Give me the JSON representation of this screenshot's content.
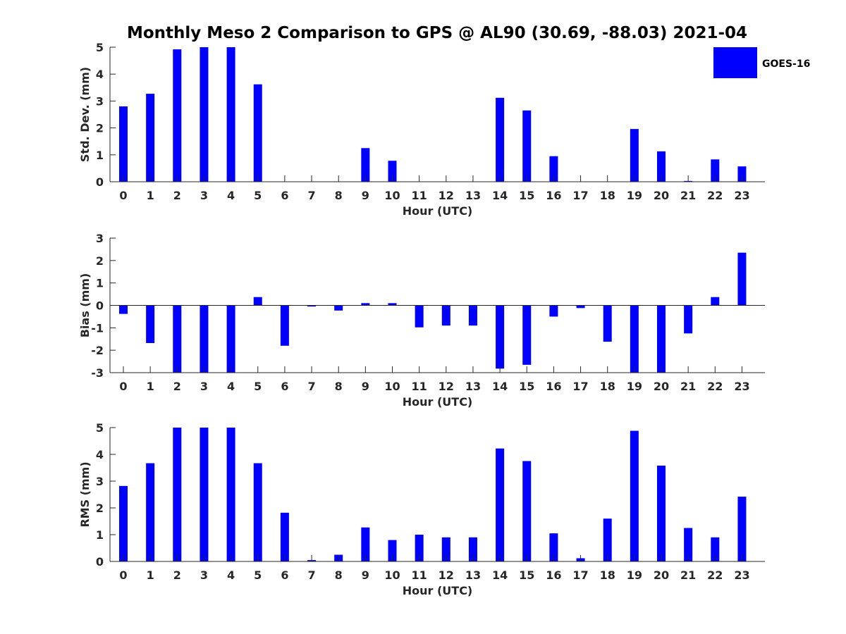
{
  "title": "Monthly Meso 2 Comparison to GPS @ AL90 (30.69, -88.03) 2021-04",
  "colors": {
    "bar": "#0000ff",
    "axis": "#262626"
  },
  "legend": {
    "label": "GOES-16",
    "placement": "top-right"
  },
  "chart_data": [
    {
      "type": "bar",
      "categories": [
        "0",
        "1",
        "2",
        "3",
        "4",
        "5",
        "6",
        "7",
        "8",
        "9",
        "10",
        "11",
        "12",
        "13",
        "14",
        "15",
        "16",
        "17",
        "18",
        "19",
        "20",
        "21",
        "22",
        "23"
      ],
      "series": [
        {
          "name": "GOES-16",
          "values": [
            2.8,
            3.27,
            4.92,
            5,
            5,
            3.62,
            0,
            0,
            0,
            1.25,
            0.78,
            0,
            0,
            0,
            3.12,
            2.65,
            0.95,
            0,
            0,
            1.96,
            1.13,
            0.03,
            0.83,
            0.57
          ]
        }
      ],
      "xlabel": "Hour (UTC)",
      "ylabel": "Std. Dev. (mm)",
      "ylim": [
        0,
        5
      ],
      "yticks": [
        0,
        1,
        2,
        3,
        4,
        5
      ]
    },
    {
      "type": "bar",
      "categories": [
        "0",
        "1",
        "2",
        "3",
        "4",
        "5",
        "6",
        "7",
        "8",
        "9",
        "10",
        "11",
        "12",
        "13",
        "14",
        "15",
        "16",
        "17",
        "18",
        "19",
        "20",
        "21",
        "22",
        "23"
      ],
      "series": [
        {
          "name": "GOES-16",
          "values": [
            -0.38,
            -1.68,
            -3,
            -3,
            -3,
            0.37,
            -1.8,
            -0.05,
            -0.23,
            0.1,
            0.1,
            -0.98,
            -0.9,
            -0.9,
            -2.82,
            -2.65,
            -0.5,
            -0.12,
            -1.62,
            -3,
            -3,
            -1.25,
            0.37,
            2.35
          ]
        }
      ],
      "xlabel": "Hour (UTC)",
      "ylabel": "Bias (mm)",
      "ylim": [
        -3,
        3
      ],
      "yticks": [
        -3,
        -2,
        -1,
        0,
        1,
        2,
        3
      ]
    },
    {
      "type": "bar",
      "categories": [
        "0",
        "1",
        "2",
        "3",
        "4",
        "5",
        "6",
        "7",
        "8",
        "9",
        "10",
        "11",
        "12",
        "13",
        "14",
        "15",
        "16",
        "17",
        "18",
        "19",
        "20",
        "21",
        "22",
        "23"
      ],
      "series": [
        {
          "name": "GOES-16",
          "values": [
            2.82,
            3.67,
            5,
            5,
            5,
            3.67,
            1.82,
            0.05,
            0.25,
            1.27,
            0.8,
            1,
            0.9,
            0.9,
            4.22,
            3.75,
            1.05,
            0.12,
            1.6,
            4.88,
            3.58,
            1.25,
            0.9,
            2.42
          ]
        }
      ],
      "xlabel": "Hour (UTC)",
      "ylabel": "RMS (mm)",
      "ylim": [
        0,
        5
      ],
      "yticks": [
        0,
        1,
        2,
        3,
        4,
        5
      ]
    }
  ]
}
